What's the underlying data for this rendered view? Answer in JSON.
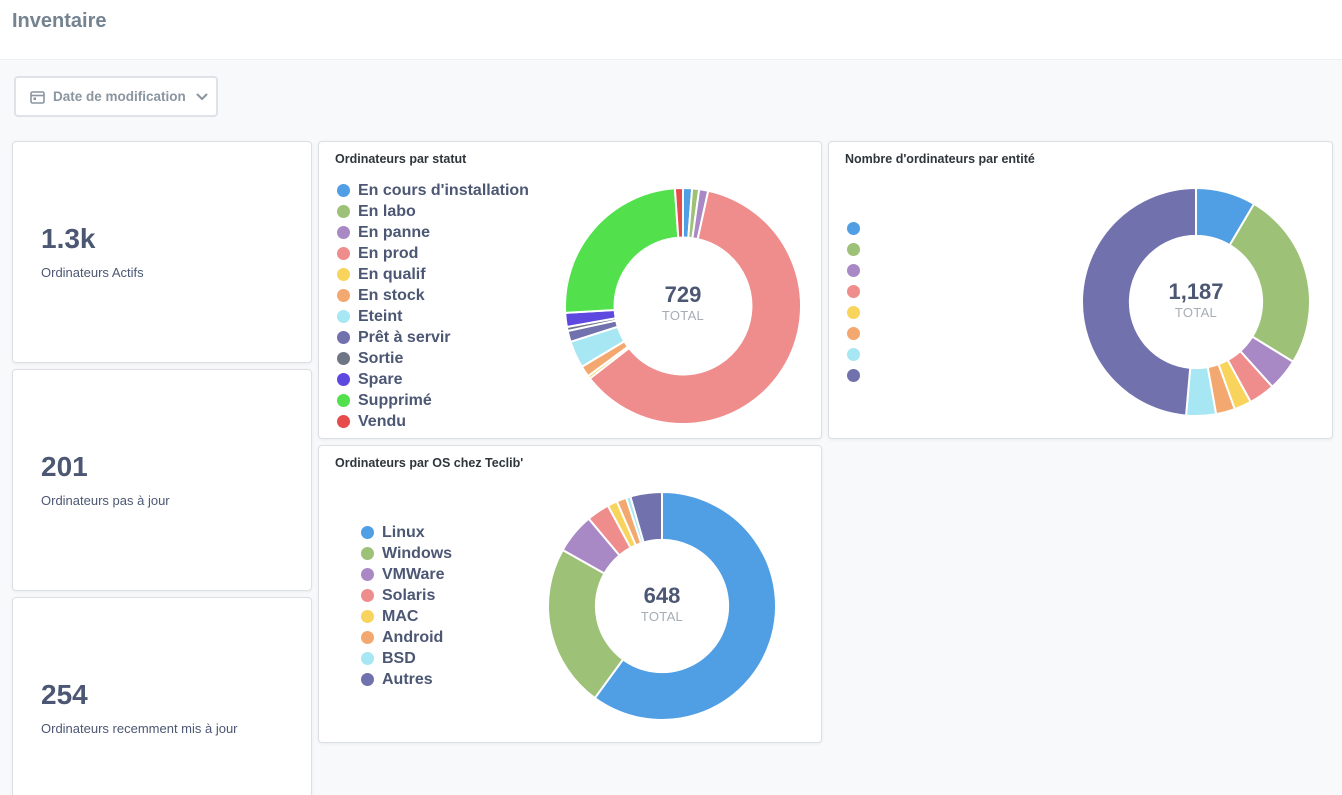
{
  "page": {
    "title": "Inventaire"
  },
  "filter": {
    "label": "Date de modification",
    "icon": "calendar-icon",
    "chevron": "chevron-down-icon"
  },
  "scalars": [
    {
      "value": "1.3k",
      "label": "Ordinateurs Actifs"
    },
    {
      "value": "201",
      "label": "Ordinateurs pas à jour"
    },
    {
      "value": "254",
      "label": "Ordinateurs recemment mis à jour"
    }
  ],
  "charts": {
    "status": {
      "title": "Ordinateurs par statut",
      "total": "729",
      "total_label": "TOTAL"
    },
    "os": {
      "title": "Ordinateurs par OS chez Teclib'",
      "total": "648",
      "total_label": "TOTAL"
    },
    "entity": {
      "title": "Nombre d'ordinateurs par entité",
      "total": "1,187",
      "total_label": "TOTAL"
    }
  },
  "chart_data": [
    {
      "type": "pie",
      "title": "Ordinateurs par statut",
      "total": 729,
      "categories": [
        "En cours d'installation",
        "En labo",
        "En panne",
        "En prod",
        "En qualif",
        "En stock",
        "Eteint",
        "Prêt à servir",
        "Sortie",
        "Spare",
        "Supprimé",
        "Vendu"
      ],
      "values": [
        9,
        7,
        9,
        445,
        3,
        11,
        27,
        11,
        4,
        14,
        181,
        8
      ],
      "colors": [
        "#509ee3",
        "#9cc177",
        "#a989c5",
        "#ef8c8c",
        "#f9d45c",
        "#f2a86f",
        "#a6e7f3",
        "#7172ad",
        "#6e7686",
        "#5d48e0",
        "#52e04c",
        "#e64c4c"
      ],
      "legend": "left"
    },
    {
      "type": "pie",
      "title": "Ordinateurs par OS chez Teclib'",
      "total": 648,
      "categories": [
        "Linux",
        "Windows",
        "VMWare",
        "Solaris",
        "MAC",
        "Android",
        "BSD",
        "Autres"
      ],
      "values": [
        389,
        150,
        37,
        21,
        9,
        9,
        4,
        29
      ],
      "colors": [
        "#509ee3",
        "#9cc177",
        "#a989c5",
        "#ef8c8c",
        "#f9d45c",
        "#f2a86f",
        "#a6e7f3",
        "#7172ad"
      ],
      "legend": "left"
    },
    {
      "type": "pie",
      "title": "Nombre d'ordinateurs par entité",
      "total": 1187,
      "categories": [
        "",
        "",
        "",
        "",
        "",
        "",
        "",
        ""
      ],
      "values": [
        101,
        300,
        54,
        44,
        29,
        32,
        50,
        577
      ],
      "colors": [
        "#509ee3",
        "#9cc177",
        "#a989c5",
        "#ef8c8c",
        "#f9d45c",
        "#f2a86f",
        "#a6e7f3",
        "#7172ad"
      ],
      "legend": "left"
    }
  ]
}
